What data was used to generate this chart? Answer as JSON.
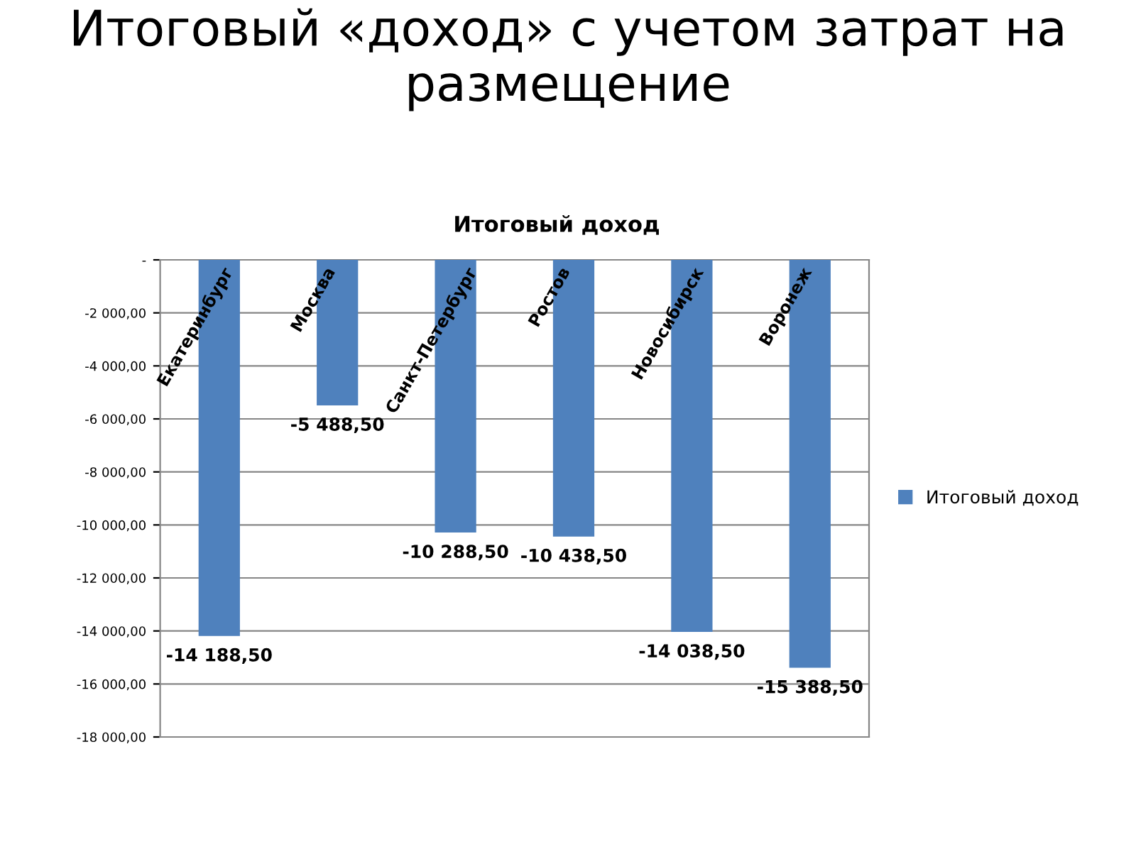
{
  "chart_data": {
    "type": "bar",
    "title": "Итоговый «доход» с учетом затрат на размещение",
    "subtitle": "Итоговый доход",
    "categories": [
      "Екатеринбург",
      "Москва",
      "Санкт-Петербург",
      "Ростов",
      "Новосибирск",
      "Воронеж"
    ],
    "series": [
      {
        "name": "Итоговый доход",
        "color": "#4f81bd",
        "values": [
          -14188.5,
          -5488.5,
          -10288.5,
          -10438.5,
          -14038.5,
          -15388.5
        ],
        "value_labels": [
          "-14 188,50",
          "-5 488,50",
          "-10 288,50",
          "-10 438,50",
          "-14 038,50",
          "-15 388,50"
        ]
      }
    ],
    "ylim": [
      -18000,
      0
    ],
    "yticks": [
      {
        "value": 0,
        "label": "-"
      },
      {
        "value": -2000,
        "label": "-2 000,00"
      },
      {
        "value": -4000,
        "label": "-4 000,00"
      },
      {
        "value": -6000,
        "label": "-6 000,00"
      },
      {
        "value": -8000,
        "label": "-8 000,00"
      },
      {
        "value": -10000,
        "label": "-10 000,00"
      },
      {
        "value": -12000,
        "label": "-12 000,00"
      },
      {
        "value": -14000,
        "label": "-14 000,00"
      },
      {
        "value": -16000,
        "label": "-16 000,00"
      },
      {
        "value": -18000,
        "label": "-18 000,00"
      }
    ],
    "grid": "y",
    "legend": "right"
  }
}
